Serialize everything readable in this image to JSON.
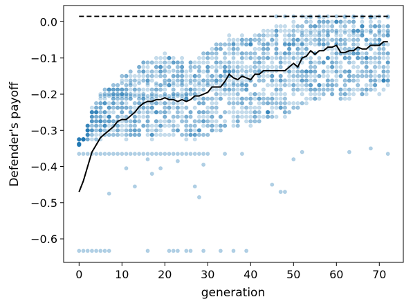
{
  "chart_data": {
    "type": "scatter",
    "title": "",
    "xlabel": "generation",
    "ylabel": "Defender's payoff",
    "xlim": [
      -3.6,
      75.6
    ],
    "ylim": [
      -0.665,
      0.045
    ],
    "xticks": [
      0,
      10,
      20,
      30,
      40,
      50,
      60,
      70
    ],
    "yticks": [
      0.0,
      -0.1,
      -0.2,
      -0.3,
      -0.4,
      -0.5,
      -0.6
    ],
    "xtick_labels": [
      "0",
      "10",
      "20",
      "30",
      "40",
      "50",
      "60",
      "70"
    ],
    "ytick_labels": [
      "0.0",
      "−0.1",
      "−0.2",
      "−0.3",
      "−0.4",
      "−0.5",
      "−0.6"
    ],
    "grid": false,
    "reference_line": {
      "style": "dashed",
      "color": "#000000",
      "x": [
        0,
        72
      ],
      "y": 0.015
    },
    "mean_line": {
      "color": "#000000",
      "x": [
        0,
        1,
        2,
        3,
        4,
        5,
        6,
        7,
        8,
        9,
        10,
        11,
        12,
        13,
        14,
        15,
        16,
        17,
        18,
        19,
        20,
        21,
        22,
        23,
        24,
        25,
        26,
        27,
        28,
        29,
        30,
        31,
        32,
        33,
        34,
        35,
        36,
        37,
        38,
        39,
        40,
        41,
        42,
        43,
        44,
        45,
        46,
        47,
        48,
        49,
        50,
        51,
        52,
        53,
        54,
        55,
        56,
        57,
        58,
        59,
        60,
        61,
        62,
        63,
        64,
        65,
        66,
        67,
        68,
        69,
        70,
        71,
        72
      ],
      "y": [
        -0.47,
        -0.44,
        -0.4,
        -0.36,
        -0.34,
        -0.32,
        -0.31,
        -0.3,
        -0.29,
        -0.275,
        -0.27,
        -0.27,
        -0.26,
        -0.25,
        -0.235,
        -0.225,
        -0.22,
        -0.22,
        -0.215,
        -0.215,
        -0.21,
        -0.215,
        -0.215,
        -0.22,
        -0.215,
        -0.22,
        -0.215,
        -0.205,
        -0.205,
        -0.2,
        -0.195,
        -0.18,
        -0.18,
        -0.18,
        -0.165,
        -0.145,
        -0.155,
        -0.16,
        -0.15,
        -0.155,
        -0.16,
        -0.145,
        -0.145,
        -0.135,
        -0.135,
        -0.135,
        -0.135,
        -0.135,
        -0.135,
        -0.125,
        -0.115,
        -0.125,
        -0.1,
        -0.095,
        -0.08,
        -0.09,
        -0.08,
        -0.08,
        -0.07,
        -0.07,
        -0.065,
        -0.085,
        -0.085,
        -0.08,
        -0.08,
        -0.07,
        -0.075,
        -0.075,
        -0.065,
        -0.065,
        -0.065,
        -0.055,
        -0.055
      ]
    },
    "scatter_series": {
      "color": "#1f77b4",
      "opacity": 0.25
    },
    "dense_points": [
      [
        0,
        -0.365
      ],
      [
        1,
        -0.365
      ],
      [
        2,
        -0.365
      ],
      [
        3,
        -0.365
      ],
      [
        4,
        -0.365
      ],
      [
        5,
        -0.365
      ],
      [
        6,
        -0.365
      ],
      [
        7,
        -0.365
      ],
      [
        8,
        -0.365
      ],
      [
        9,
        -0.365
      ],
      [
        10,
        -0.365
      ],
      [
        11,
        -0.365
      ],
      [
        12,
        -0.365
      ],
      [
        13,
        -0.365
      ],
      [
        14,
        -0.365
      ],
      [
        15,
        -0.365
      ],
      [
        16,
        -0.365
      ],
      [
        17,
        -0.365
      ],
      [
        18,
        -0.365
      ],
      [
        19,
        -0.365
      ],
      [
        20,
        -0.365
      ],
      [
        21,
        -0.365
      ],
      [
        22,
        -0.365
      ],
      [
        23,
        -0.365
      ],
      [
        24,
        -0.365
      ],
      [
        25,
        -0.365
      ],
      [
        26,
        -0.365
      ],
      [
        27,
        -0.365
      ],
      [
        28,
        -0.365
      ],
      [
        29,
        -0.365
      ],
      [
        30,
        -0.365
      ],
      [
        0,
        -0.633
      ],
      [
        1,
        -0.633
      ],
      [
        2,
        -0.633
      ],
      [
        3,
        -0.633
      ],
      [
        4,
        -0.633
      ],
      [
        5,
        -0.633
      ],
      [
        6,
        -0.633
      ],
      [
        7,
        -0.633
      ],
      [
        46,
        0.015
      ],
      [
        48,
        0.015
      ],
      [
        50,
        0.015
      ],
      [
        52,
        0.015
      ],
      [
        54,
        0.015
      ],
      [
        56,
        0.015
      ],
      [
        58,
        0.015
      ],
      [
        60,
        0.015
      ],
      [
        62,
        0.015
      ],
      [
        64,
        0.015
      ],
      [
        66,
        0.015
      ],
      [
        68,
        0.015
      ],
      [
        70,
        0.015
      ],
      [
        72,
        0.015
      ],
      [
        5,
        -0.205
      ],
      [
        6,
        -0.205
      ],
      [
        7,
        -0.205
      ],
      [
        8,
        -0.205
      ],
      [
        9,
        -0.205
      ],
      [
        10,
        -0.205
      ],
      [
        11,
        -0.205
      ],
      [
        12,
        -0.205
      ],
      [
        13,
        -0.205
      ],
      [
        14,
        -0.205
      ],
      [
        15,
        -0.205
      ],
      [
        16,
        -0.205
      ],
      [
        17,
        -0.205
      ],
      [
        18,
        -0.205
      ],
      [
        19,
        -0.205
      ],
      [
        20,
        -0.205
      ],
      [
        21,
        -0.205
      ],
      [
        22,
        -0.205
      ],
      [
        23,
        -0.205
      ],
      [
        24,
        -0.205
      ],
      [
        25,
        -0.205
      ],
      [
        10,
        -0.17
      ],
      [
        12,
        -0.17
      ],
      [
        14,
        -0.17
      ],
      [
        16,
        -0.17
      ],
      [
        18,
        -0.17
      ],
      [
        20,
        -0.17
      ],
      [
        22,
        -0.17
      ],
      [
        24,
        -0.17
      ],
      [
        26,
        -0.17
      ],
      [
        28,
        -0.17
      ],
      [
        30,
        -0.17
      ],
      [
        32,
        -0.17
      ],
      [
        34,
        -0.17
      ],
      [
        36,
        -0.17
      ],
      [
        38,
        -0.17
      ],
      [
        20,
        -0.135
      ],
      [
        22,
        -0.135
      ],
      [
        24,
        -0.135
      ],
      [
        26,
        -0.135
      ],
      [
        28,
        -0.135
      ],
      [
        30,
        -0.135
      ],
      [
        32,
        -0.135
      ],
      [
        34,
        -0.135
      ],
      [
        36,
        -0.135
      ],
      [
        38,
        -0.135
      ],
      [
        40,
        -0.135
      ],
      [
        42,
        -0.135
      ],
      [
        44,
        -0.135
      ],
      [
        46,
        -0.135
      ],
      [
        30,
        -0.1
      ],
      [
        32,
        -0.1
      ],
      [
        34,
        -0.1
      ],
      [
        36,
        -0.1
      ],
      [
        38,
        -0.1
      ],
      [
        40,
        -0.1
      ],
      [
        42,
        -0.1
      ],
      [
        44,
        -0.1
      ],
      [
        46,
        -0.1
      ],
      [
        48,
        -0.1
      ],
      [
        50,
        -0.1
      ],
      [
        52,
        -0.1
      ],
      [
        54,
        -0.1
      ],
      [
        56,
        -0.1
      ],
      [
        58,
        -0.1
      ],
      [
        60,
        -0.1
      ],
      [
        36,
        -0.06
      ],
      [
        38,
        -0.06
      ],
      [
        40,
        -0.06
      ],
      [
        42,
        -0.06
      ],
      [
        44,
        -0.06
      ],
      [
        46,
        -0.06
      ],
      [
        48,
        -0.06
      ],
      [
        50,
        -0.06
      ],
      [
        52,
        -0.06
      ],
      [
        54,
        -0.06
      ],
      [
        56,
        -0.06
      ],
      [
        58,
        -0.06
      ],
      [
        60,
        -0.06
      ],
      [
        62,
        -0.06
      ],
      [
        52,
        -0.03
      ],
      [
        54,
        -0.03
      ],
      [
        56,
        -0.03
      ],
      [
        58,
        -0.03
      ],
      [
        60,
        -0.03
      ],
      [
        62,
        -0.03
      ],
      [
        64,
        -0.03
      ],
      [
        66,
        -0.03
      ],
      [
        68,
        -0.03
      ],
      [
        70,
        -0.03
      ],
      [
        72,
        -0.03
      ]
    ],
    "outlier_points": [
      [
        7,
        -0.475
      ],
      [
        11,
        -0.405
      ],
      [
        13,
        -0.455
      ],
      [
        16,
        -0.38
      ],
      [
        17,
        -0.42
      ],
      [
        19,
        -0.405
      ],
      [
        23,
        -0.385
      ],
      [
        27,
        -0.455
      ],
      [
        28,
        -0.485
      ],
      [
        29,
        -0.395
      ],
      [
        34,
        -0.365
      ],
      [
        38,
        -0.365
      ],
      [
        45,
        -0.45
      ],
      [
        47,
        -0.47
      ],
      [
        48,
        -0.47
      ],
      [
        50,
        -0.38
      ],
      [
        52,
        -0.36
      ],
      [
        63,
        -0.36
      ],
      [
        68,
        -0.35
      ],
      [
        72,
        -0.365
      ],
      [
        16,
        -0.633
      ],
      [
        21,
        -0.633
      ],
      [
        22,
        -0.633
      ],
      [
        23,
        -0.633
      ],
      [
        25,
        -0.633
      ],
      [
        26,
        -0.633
      ],
      [
        29,
        -0.633
      ],
      [
        33,
        -0.633
      ],
      [
        36,
        -0.633
      ],
      [
        39,
        -0.633
      ]
    ],
    "scatter_generation": {
      "x_range": [
        0,
        72
      ],
      "per_generation": 28
    }
  }
}
